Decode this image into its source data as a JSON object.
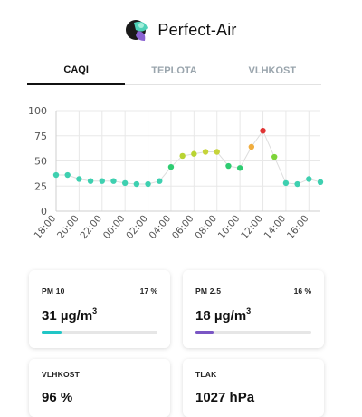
{
  "app": {
    "title": "Perfect-Air",
    "logo_icon": "perfect-air-logo-icon"
  },
  "tabs": [
    {
      "label": "CAQI",
      "active": true
    },
    {
      "label": "TEPLOTA",
      "active": false
    },
    {
      "label": "VLHKOST",
      "active": false
    }
  ],
  "chart_data": {
    "type": "scatter",
    "title": "",
    "xlabel": "",
    "ylabel": "",
    "ylim": [
      0,
      100
    ],
    "yticks": [
      0,
      25,
      50,
      75,
      100
    ],
    "x_tick_labels": [
      "18:00",
      "20:00",
      "22:00",
      "00:00",
      "02:00",
      "04:00",
      "06:00",
      "08:00",
      "10:00",
      "12:00",
      "14:00",
      "16:00"
    ],
    "grid": true,
    "connecting_line_color": "#dddddd",
    "series": [
      {
        "values": [
          36,
          36,
          32,
          30,
          30,
          30,
          28,
          27,
          27,
          30,
          44,
          55,
          57,
          59,
          59,
          45,
          43,
          64,
          80,
          54,
          28,
          27,
          32,
          29
        ],
        "colors": [
          "#3ed0b0",
          "#3ed0b0",
          "#3ed0b0",
          "#3ed0b0",
          "#3ed0b0",
          "#3ed0b0",
          "#3ed0b0",
          "#3ed0b0",
          "#3ed0b0",
          "#3ed0b0",
          "#2ecc71",
          "#b9d433",
          "#b9d433",
          "#c6d43a",
          "#c6d43a",
          "#2ecc71",
          "#2ecc71",
          "#f0ad3e",
          "#e03434",
          "#7ed43a",
          "#3ed0b0",
          "#3ed0b0",
          "#3ed0b0",
          "#3ed0b0"
        ]
      }
    ]
  },
  "cards": {
    "pm10": {
      "label": "PM 10",
      "percent": "17 %",
      "value": "31 µg/m",
      "unit_sup": "3",
      "bar_fraction": 0.17,
      "bar_color": "#21c6c6"
    },
    "pm25": {
      "label": "PM 2.5",
      "percent": "16 %",
      "value": "18 µg/m",
      "unit_sup": "3",
      "bar_fraction": 0.16,
      "bar_color": "#7a56c4"
    },
    "humidity": {
      "label": "VLHKOST",
      "value": "96 %"
    },
    "pressure": {
      "label": "TLAK",
      "value": "1027 hPa"
    }
  }
}
